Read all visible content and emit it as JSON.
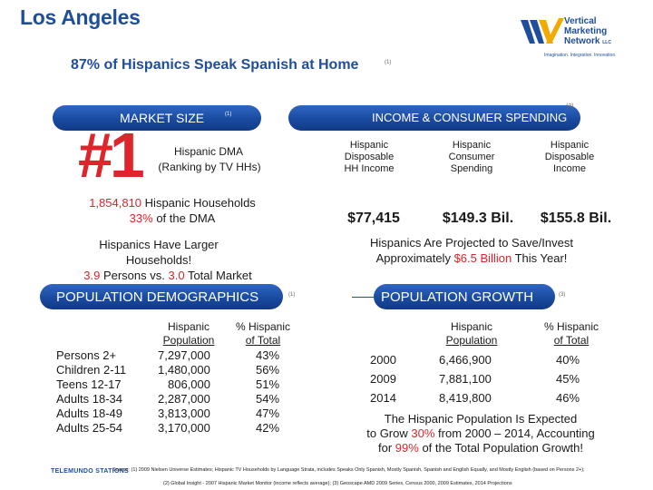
{
  "title": "Los Angeles",
  "headline": {
    "text": "87% of Hispanics Speak Spanish at Home",
    "note": "(1)"
  },
  "logo": {
    "line1": "Vertical",
    "line2": "Marketing",
    "line3": "Network",
    "suffix": "LLC",
    "tagline": "Imagination. Integration. Innovation."
  },
  "market_size": {
    "header": "MARKET SIZE",
    "note": "(1)",
    "rank": "#1",
    "rank_label_1": "Hispanic DMA",
    "rank_label_2": "(Ranking by TV HHs)",
    "households_value": "1,854,810",
    "households_label": "Hispanic Households",
    "households_pct": "33%",
    "households_pct_label": "of the DMA",
    "larger_1": "Hispanics Have Larger",
    "larger_2": "Households!",
    "persons_a": "3.9",
    "persons_mid": "Persons vs.",
    "persons_b": "3.0",
    "persons_end": "Total Market"
  },
  "income": {
    "header": "INCOME & CONSUMER SPENDING",
    "note": "(2)",
    "columns": [
      {
        "label_1": "Hispanic",
        "label_2": "Disposable",
        "label_3": "HH Income",
        "value": "$77,415"
      },
      {
        "label_1": "Hispanic",
        "label_2": "Consumer",
        "label_3": "Spending",
        "value": "$149.3 Bil."
      },
      {
        "label_1": "Hispanic",
        "label_2": "Disposable",
        "label_3": "Income",
        "value": "$155.8 Bil."
      }
    ],
    "save_1": "Hispanics Are Projected to Save/Invest",
    "save_2a": "Approximately",
    "save_amount": "$6.5 Billion",
    "save_2b": "This Year!"
  },
  "demographics": {
    "header": "POPULATION DEMOGRAPHICS",
    "note": "(1)",
    "col_pop_1": "Hispanic",
    "col_pop_2": "Population",
    "col_pct_1": "% Hispanic",
    "col_pct_2": "of Total",
    "rows": [
      {
        "label": "Persons 2+",
        "pop": "7,297,000",
        "pct": "43%"
      },
      {
        "label": "Children 2-11",
        "pop": "1,480,000",
        "pct": "56%"
      },
      {
        "label": "Teens 12-17",
        "pop": "806,000",
        "pct": "51%"
      },
      {
        "label": "Adults 18-34",
        "pop": "2,287,000",
        "pct": "54%"
      },
      {
        "label": "Adults 18-49",
        "pop": "3,813,000",
        "pct": "47%"
      },
      {
        "label": "Adults 25-54",
        "pop": "3,170,000",
        "pct": "42%"
      }
    ]
  },
  "growth": {
    "header": "POPULATION GROWTH",
    "note": "(3)",
    "col_pop_1": "Hispanic",
    "col_pop_2": "Population",
    "col_pct_1": "% Hispanic",
    "col_pct_2": "of Total",
    "rows": [
      {
        "year": "2000",
        "pop": "6,466,900",
        "pct": "40%"
      },
      {
        "year": "2009",
        "pop": "7,881,100",
        "pct": "45%"
      },
      {
        "year": "2014",
        "pop": "8,419,800",
        "pct": "46%"
      }
    ],
    "summary_1": "The Hispanic Population Is Expected",
    "summary_2a": "to Grow",
    "summary_pct1": "30%",
    "summary_2b": "from 2000 – 2014, Accounting",
    "summary_3a": "for",
    "summary_pct2": "99%",
    "summary_3b": "of the Total Population Growth!"
  },
  "footer": {
    "brand": "TELEMUNDO STATIONS",
    "source_1": "Source: (1) 2009 Nielsen Universe Estimates; Hispanic TV Households by Language Strata, includes Speaks Only Spanish, Mostly Spanish, Spanish and English Equally, and Mostly English (based on Persons 2+);",
    "source_2": "(2) Global Insight - 2007 Hispanic Market Monitor (income reflects average); (3) Geoscape AMD 2009 Series, Census 2000, 2009 Estimates, 2014 Projections"
  },
  "colors": {
    "accent_red": "#e0242b",
    "brand_blue": "#1f4e9c",
    "band_blue": "#1a4aa0"
  }
}
